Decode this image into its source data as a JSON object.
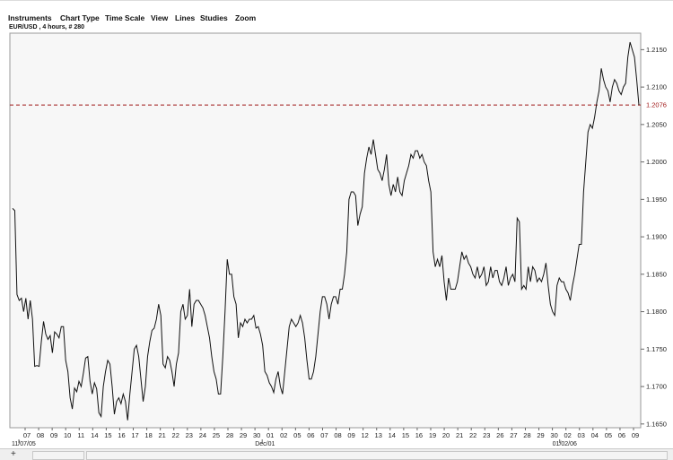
{
  "menu": {
    "items": [
      "Instruments",
      "Chart Type",
      "Time Scale",
      "View",
      "Lines",
      "Studies",
      "Zoom"
    ]
  },
  "chart_header": {
    "symbol_label": "EUR/USD , 4 hours, # 280"
  },
  "colors": {
    "plot_background": "#f7f7f7",
    "price_line": "#111111",
    "reference_line": "#a01818",
    "reference_label": "#a01818"
  },
  "chart_data": {
    "type": "line",
    "title": "EUR/USD , 4 hours, # 280",
    "xlabel": "",
    "ylabel": "",
    "ylim": [
      1.1645,
      1.2172
    ],
    "grid": false,
    "y_ticks": [
      "1.2150",
      "1.2100",
      "1.2050",
      "1.2000",
      "1.1950",
      "1.1900",
      "1.1850",
      "1.1800",
      "1.1750",
      "1.1700",
      "1.1650"
    ],
    "x_tick_labels": [
      "07",
      "08",
      "09",
      "10",
      "11",
      "14",
      "15",
      "16",
      "17",
      "18",
      "21",
      "22",
      "23",
      "24",
      "25",
      "28",
      "29",
      "30",
      "01",
      "02",
      "05",
      "06",
      "07",
      "08",
      "09",
      "12",
      "13",
      "14",
      "15",
      "16",
      "19",
      "20",
      "21",
      "22",
      "23",
      "26",
      "27",
      "28",
      "29",
      "30",
      "02",
      "03",
      "04",
      "05",
      "06",
      "09"
    ],
    "x_group_labels": [
      {
        "label": "11/07/05",
        "at_tick": 0
      },
      {
        "label": "Dec/01",
        "at_tick": 18
      },
      {
        "label": "01/02/06",
        "at_tick": 40
      }
    ],
    "reference_line": {
      "value": 1.2076,
      "label": "1.2076",
      "style": "dashed"
    },
    "series": [
      {
        "values": [
          1.1938,
          1.1935,
          1.1823,
          1.1815,
          1.1818,
          1.18,
          1.1818,
          1.179,
          1.1815,
          1.179,
          1.1727,
          1.1728,
          1.1727,
          1.176,
          1.1787,
          1.177,
          1.1763,
          1.1768,
          1.1745,
          1.1773,
          1.177,
          1.1765,
          1.178,
          1.178,
          1.1735,
          1.172,
          1.1685,
          1.167,
          1.1698,
          1.1693,
          1.1707,
          1.17,
          1.1718,
          1.1738,
          1.174,
          1.1707,
          1.169,
          1.1705,
          1.1697,
          1.1665,
          1.166,
          1.17,
          1.172,
          1.1735,
          1.173,
          1.17,
          1.1663,
          1.168,
          1.1685,
          1.1677,
          1.169,
          1.168,
          1.1655,
          1.169,
          1.172,
          1.175,
          1.1755,
          1.174,
          1.171,
          1.168,
          1.17,
          1.174,
          1.176,
          1.1775,
          1.1778,
          1.179,
          1.181,
          1.1795,
          1.173,
          1.1725,
          1.174,
          1.1735,
          1.172,
          1.17,
          1.173,
          1.1745,
          1.18,
          1.181,
          1.179,
          1.1795,
          1.183,
          1.178,
          1.181,
          1.1815,
          1.1815,
          1.181,
          1.1805,
          1.1795,
          1.178,
          1.1765,
          1.174,
          1.172,
          1.171,
          1.169,
          1.169,
          1.174,
          1.18,
          1.187,
          1.185,
          1.185,
          1.182,
          1.181,
          1.1765,
          1.1785,
          1.178,
          1.179,
          1.1785,
          1.179,
          1.179,
          1.1795,
          1.1778,
          1.178,
          1.177,
          1.1755,
          1.172,
          1.1715,
          1.1705,
          1.17,
          1.1692,
          1.171,
          1.172,
          1.17,
          1.169,
          1.172,
          1.175,
          1.178,
          1.179,
          1.1785,
          1.178,
          1.1785,
          1.1795,
          1.1785,
          1.1765,
          1.1735,
          1.171,
          1.171,
          1.172,
          1.174,
          1.177,
          1.18,
          1.182,
          1.182,
          1.181,
          1.179,
          1.181,
          1.182,
          1.182,
          1.181,
          1.183,
          1.183,
          1.185,
          1.188,
          1.195,
          1.196,
          1.196,
          1.1955,
          1.1915,
          1.193,
          1.194,
          1.1985,
          1.2005,
          1.202,
          1.201,
          1.203,
          1.201,
          1.199,
          1.1985,
          1.1975,
          1.199,
          1.201,
          1.197,
          1.1955,
          1.197,
          1.196,
          1.198,
          1.196,
          1.1955,
          1.1975,
          1.1985,
          1.1995,
          1.201,
          1.2005,
          1.2015,
          1.2015,
          1.2005,
          1.201,
          1.2,
          1.1995,
          1.1975,
          1.196,
          1.188,
          1.186,
          1.187,
          1.186,
          1.1875,
          1.184,
          1.1815,
          1.1845,
          1.183,
          1.183,
          1.183,
          1.184,
          1.186,
          1.188,
          1.187,
          1.1875,
          1.1865,
          1.186,
          1.185,
          1.1845,
          1.186,
          1.1845,
          1.185,
          1.186,
          1.1835,
          1.184,
          1.186,
          1.1845,
          1.1855,
          1.1855,
          1.184,
          1.1835,
          1.1845,
          1.186,
          1.1835,
          1.1845,
          1.185,
          1.184,
          1.1925,
          1.192,
          1.183,
          1.1835,
          1.183,
          1.186,
          1.184,
          1.186,
          1.1855,
          1.184,
          1.1845,
          1.184,
          1.185,
          1.1865,
          1.1835,
          1.181,
          1.18,
          1.1795,
          1.1835,
          1.1845,
          1.184,
          1.184,
          1.183,
          1.1825,
          1.1815,
          1.1835,
          1.185,
          1.187,
          1.189,
          1.189,
          1.196,
          1.2,
          1.204,
          1.205,
          1.2045,
          1.206,
          1.208,
          1.2095,
          1.2125,
          1.211,
          1.21,
          1.2095,
          1.208,
          1.21,
          1.211,
          1.2105,
          1.2095,
          1.209,
          1.21,
          1.2105,
          1.214,
          1.216,
          1.215,
          1.214,
          1.211,
          1.2076
        ]
      }
    ]
  }
}
